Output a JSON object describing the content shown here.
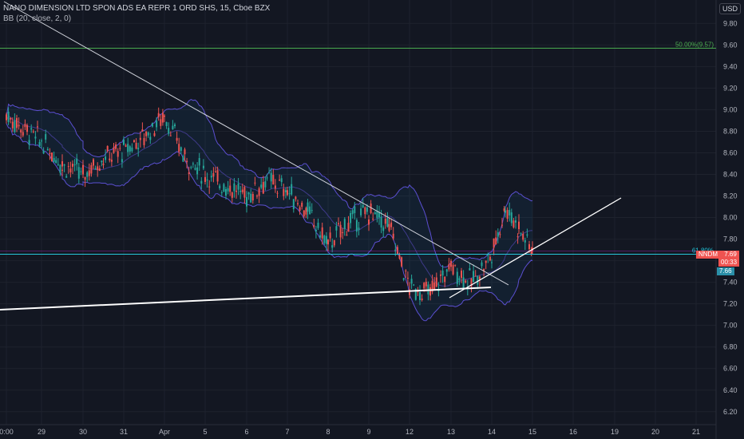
{
  "legend": {
    "title": "NANO DIMENSION LTD SPON ADS EA REPR 1 ORD SHS, 15, Cboe BZX",
    "indicator": "BB (20, close, 2, 0)"
  },
  "currency_button": "USD",
  "price_tags": {
    "symbol": "NNDM",
    "last": "7.69",
    "countdown": "00:33",
    "second": "7.66"
  },
  "colors": {
    "background": "#131722",
    "grid": "#1e222d",
    "up": "#26a69a",
    "down": "#ef5350",
    "band": "#5b4fd1",
    "fib50": "#4caf50",
    "fib618": "#26c6da",
    "trendline": "#ffffff",
    "last_tag": "#ef5350",
    "second_tag": "#2a8fa8"
  },
  "chart_data": {
    "type": "candlestick",
    "title": "NANO DIMENSION LTD SPON ADS EA REPR 1 ORD SHS, 15, Cboe BZX",
    "interval": "15",
    "y_axis": {
      "ticks": [
        "9.80",
        "9.60",
        "9.40",
        "9.20",
        "9.00",
        "8.80",
        "8.60",
        "8.40",
        "8.20",
        "8.00",
        "7.80",
        "7.60",
        "7.40",
        "7.20",
        "7.00",
        "6.80",
        "6.60",
        "6.40",
        "6.20"
      ],
      "ylim": [
        6.08,
        9.98
      ]
    },
    "x_axis": {
      "ticks": [
        "0:00",
        "29",
        "30",
        "31",
        "Apr",
        "5",
        "6",
        "7",
        "8",
        "9",
        "12",
        "13",
        "14",
        "15",
        "16",
        "19",
        "20",
        "21"
      ]
    },
    "price_path": [
      [
        "0:00",
        8.95
      ],
      [
        "29",
        8.7
      ],
      [
        "29",
        8.5
      ],
      [
        "30",
        8.4
      ],
      [
        "30",
        8.55
      ],
      [
        "31",
        8.62
      ],
      [
        "31",
        8.75
      ],
      [
        "Apr",
        8.95
      ],
      [
        "Apr",
        8.55
      ],
      [
        "5",
        8.4
      ],
      [
        "5",
        8.3
      ],
      [
        "6",
        8.2
      ],
      [
        "6",
        8.35
      ],
      [
        "7",
        8.25
      ],
      [
        "7",
        8.05
      ],
      [
        "8",
        7.75
      ],
      [
        "8",
        7.95
      ],
      [
        "9",
        8.05
      ],
      [
        "9",
        7.92
      ],
      [
        "12",
        7.35
      ],
      [
        "12",
        7.3
      ],
      [
        "13",
        7.55
      ],
      [
        "13",
        7.4
      ],
      [
        "14",
        7.65
      ],
      [
        "14",
        8.1
      ],
      [
        "14",
        7.9
      ],
      [
        "15",
        7.69
      ]
    ],
    "horizontal_levels": [
      {
        "label": "50.00%(9.57)",
        "value": 9.57
      },
      {
        "label": "61.80%",
        "value": 7.66
      }
    ],
    "last_price": 7.69
  }
}
